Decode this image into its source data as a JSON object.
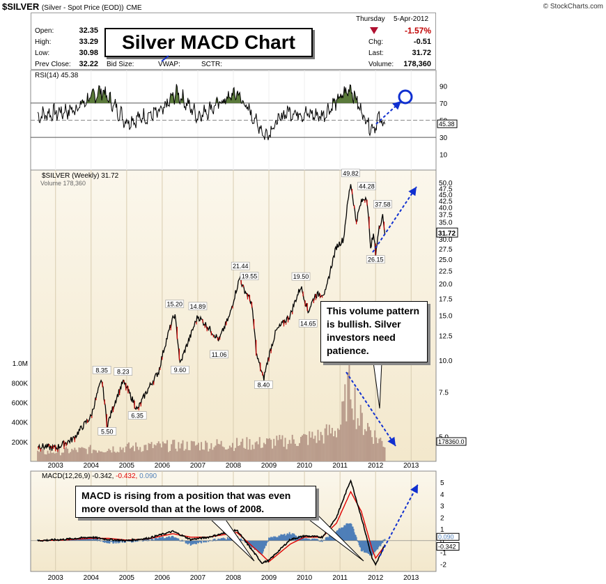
{
  "header": {
    "symbol": "$SILVER",
    "name": "(Silver - Spot Price (EOD))",
    "exchange": "CME",
    "credit": "© StockCharts.com",
    "day": "Thursday",
    "date": "5-Apr-2012",
    "change_pct": "-1.57%",
    "open_label": "Open:",
    "open": "32.35",
    "high_label": "High:",
    "high": "33.29",
    "low_label": "Low:",
    "low": "30.98",
    "prev_label": "Prev Close:",
    "prev": "32.22",
    "bid_label": "Bid Size:",
    "vwap_label": "VWAP:",
    "sctr_label": "SCTR:",
    "chg_label": "Chg:",
    "chg": "-0.51",
    "last_label": "Last:",
    "last": "31.72",
    "volume_label": "Volume:",
    "volume": "178,360"
  },
  "annotations": {
    "title_box": "Silver MACD Chart",
    "callout_volume": "This volume pattern is bullish.  Silver investors need patience.",
    "callout_macd": "MACD is rising from a position that was even more oversold than at the lows of 2008."
  },
  "colors": {
    "panel_bg": "#f3e8cc",
    "price_bar": "#000000",
    "down_bar": "#cc0000",
    "rsi_fill": "#5a7a3a",
    "macd_line": "#000000",
    "signal_line": "#e00000",
    "hist": "#4f7fb8",
    "arrow": "#1030d0",
    "volume_bar": "#b89a8a"
  },
  "chart_data": [
    {
      "type": "line",
      "title": "RSI(14) 45.38",
      "ylim": [
        0,
        100
      ],
      "y_ticks": [
        "90",
        "70",
        "50",
        "30",
        "10"
      ],
      "last_value": "45.38",
      "overbought": 70,
      "oversold": 30,
      "x": [
        "2002.5",
        "2003.5",
        "2004.3",
        "2005.0",
        "2006.0",
        "2006.4",
        "2007.0",
        "2008.1",
        "2008.9",
        "2009.5",
        "2010.5",
        "2010.9",
        "2011.3",
        "2011.6",
        "2011.9",
        "2012.1",
        "2012.26"
      ],
      "values": [
        55,
        62,
        85,
        48,
        60,
        83,
        55,
        82,
        32,
        60,
        55,
        72,
        88,
        60,
        40,
        52,
        45.38
      ]
    },
    {
      "type": "line",
      "title": "$SILVER (Weekly) 31.72",
      "subtitle": "Volume 178,360",
      "y_scale": "log",
      "y_ticks": [
        "50.0",
        "47.5",
        "45.0",
        "42.5",
        "40.0",
        "37.5",
        "35.0",
        "32.5",
        "30.0",
        "27.5",
        "25.0",
        "22.5",
        "20.0",
        "17.5",
        "15.0",
        "12.5",
        "10.0",
        "7.5",
        "5.0"
      ],
      "x_ticks": [
        "2003",
        "2004",
        "2005",
        "2006",
        "2007",
        "2008",
        "2009",
        "2010",
        "2011",
        "2012",
        "2013"
      ],
      "last_value": "31.72",
      "series": [
        {
          "x": [
            "2002.5",
            "2003.0",
            "2003.5",
            "2004.0",
            "2004.3",
            "2004.45",
            "2004.9",
            "2005.3",
            "2005.9",
            "2006.35",
            "2006.5",
            "2006.8",
            "2007.0",
            "2007.6",
            "2007.9",
            "2008.2",
            "2008.25",
            "2008.5",
            "2008.65",
            "2008.85",
            "2009.2",
            "2009.6",
            "2009.9",
            "2010.1",
            "2010.3",
            "2010.6",
            "2010.9",
            "2011.1",
            "2011.3",
            "2011.45",
            "2011.6",
            "2011.75",
            "2011.85",
            "2011.95",
            "2012.0",
            "2012.1",
            "2012.2",
            "2012.26"
          ],
          "values": [
            4.6,
            4.5,
            4.9,
            6.0,
            8.35,
            5.5,
            8.23,
            6.35,
            9.0,
            15.2,
            9.6,
            12.5,
            14.89,
            12.0,
            15.0,
            21.44,
            19.55,
            17.0,
            10.5,
            8.4,
            13.0,
            15.0,
            19.5,
            15.5,
            18.0,
            18.5,
            28.0,
            30.0,
            49.82,
            35.0,
            42.0,
            44.28,
            28.0,
            31.0,
            26.15,
            33.0,
            37.58,
            31.72
          ]
        }
      ],
      "labels": [
        {
          "text": "49.82"
        },
        {
          "text": "44.28"
        },
        {
          "text": "37.58"
        },
        {
          "text": "26.15"
        },
        {
          "text": "21.44"
        },
        {
          "text": "19.55"
        },
        {
          "text": "19.50"
        },
        {
          "text": "14.65"
        },
        {
          "text": "15.20"
        },
        {
          "text": "14.89"
        },
        {
          "text": "11.06"
        },
        {
          "text": "9.60"
        },
        {
          "text": "8.40"
        },
        {
          "text": "8.35"
        },
        {
          "text": "8.23"
        },
        {
          "text": "6.35"
        },
        {
          "text": "5.50"
        }
      ]
    },
    {
      "type": "bar",
      "title": "Volume",
      "y_ticks": [
        "1.0M",
        "800K",
        "600K",
        "400K",
        "200K"
      ],
      "last_value": "178360.0",
      "x": [
        "2002.5",
        "2003.5",
        "2004.5",
        "2005.5",
        "2006.5",
        "2007.5",
        "2008.5",
        "2009.5",
        "2010.5",
        "2011.0",
        "2011.3",
        "2011.5",
        "2011.8",
        "2012.0",
        "2012.26"
      ],
      "values": [
        90000,
        110000,
        130000,
        150000,
        160000,
        170000,
        180000,
        200000,
        260000,
        350000,
        850000,
        450000,
        350000,
        250000,
        178360
      ]
    },
    {
      "type": "line",
      "title": "MACD(12,26,9) -0.342, -0.432, 0.090",
      "y_ticks": [
        "5",
        "4",
        "3",
        "2",
        "1",
        "0",
        "-1",
        "-2"
      ],
      "x_ticks": [
        "2003",
        "2004",
        "2005",
        "2006",
        "2007",
        "2008",
        "2009",
        "2010",
        "2011",
        "2012",
        "2013"
      ],
      "macd_value": "-0.342",
      "signal_value": "-0.432",
      "hist_value": "0.090",
      "x": [
        "2002.5",
        "2003.2",
        "2004.0",
        "2004.5",
        "2005.0",
        "2005.6",
        "2006.3",
        "2006.8",
        "2007.3",
        "2008.1",
        "2008.8",
        "2009.0",
        "2009.6",
        "2010.0",
        "2010.5",
        "2010.9",
        "2011.3",
        "2011.6",
        "2011.9",
        "2012.0",
        "2012.26"
      ],
      "series": [
        {
          "name": "MACD",
          "values": [
            0.0,
            0.1,
            0.3,
            0.1,
            0.0,
            0.2,
            0.8,
            0.1,
            0.3,
            0.9,
            -1.9,
            -1.7,
            0.1,
            0.4,
            0.3,
            2.0,
            5.2,
            2.0,
            -1.5,
            -2.1,
            -0.342
          ]
        },
        {
          "name": "Signal",
          "values": [
            0.0,
            0.05,
            0.2,
            0.2,
            0.05,
            0.15,
            0.6,
            0.3,
            0.3,
            0.7,
            -1.2,
            -1.8,
            -0.3,
            0.3,
            0.3,
            1.5,
            4.2,
            2.5,
            -0.7,
            -1.5,
            -0.432
          ]
        }
      ]
    }
  ]
}
